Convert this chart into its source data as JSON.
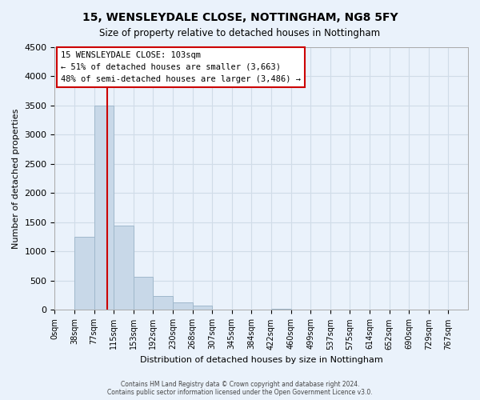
{
  "title": "15, WENSLEYDALE CLOSE, NOTTINGHAM, NG8 5FY",
  "subtitle": "Size of property relative to detached houses in Nottingham",
  "xlabel": "Distribution of detached houses by size in Nottingham",
  "ylabel": "Number of detached properties",
  "bar_color": "#c8d8e8",
  "bar_edge_color": "#a0b8cc",
  "bin_labels": [
    "0sqm",
    "38sqm",
    "77sqm",
    "115sqm",
    "153sqm",
    "192sqm",
    "230sqm",
    "268sqm",
    "307sqm",
    "345sqm",
    "384sqm",
    "422sqm",
    "460sqm",
    "499sqm",
    "537sqm",
    "575sqm",
    "614sqm",
    "652sqm",
    "690sqm",
    "729sqm",
    "767sqm"
  ],
  "bar_heights": [
    0,
    1250,
    3500,
    1450,
    570,
    240,
    130,
    70,
    0,
    0,
    0,
    20,
    0,
    0,
    0,
    0,
    0,
    0,
    0,
    0,
    0
  ],
  "ylim": [
    0,
    4500
  ],
  "yticks": [
    0,
    500,
    1000,
    1500,
    2000,
    2500,
    3000,
    3500,
    4000,
    4500
  ],
  "annotation_title": "15 WENSLEYDALE CLOSE: 103sqm",
  "annotation_line1": "← 51% of detached houses are smaller (3,663)",
  "annotation_line2": "48% of semi-detached houses are larger (3,486) →",
  "footer_line1": "Contains HM Land Registry data © Crown copyright and database right 2024.",
  "footer_line2": "Contains public sector information licensed under the Open Government Licence v3.0.",
  "grid_color": "#d0dce8",
  "bg_color": "#eaf2fb",
  "plot_bg_color": "#eaf2fb",
  "red_line_color": "#cc0000",
  "red_line_x": 2.684
}
